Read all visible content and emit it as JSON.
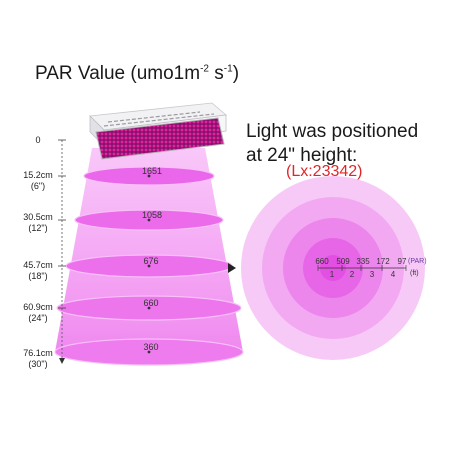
{
  "title": {
    "base": "PAR Value (umo1m",
    "sup1": "-2",
    "mid": " s",
    "sup2": "-1",
    "end": ")"
  },
  "headline": "Light was positioned at 24\" height:",
  "lux": "(Lx:23342)",
  "heights": [
    {
      "line1": "0",
      "line2": ""
    },
    {
      "line1": "15.2cm",
      "line2": "(6\")"
    },
    {
      "line1": "30.5cm",
      "line2": "(12\")"
    },
    {
      "line1": "45.7cm",
      "line2": "(18\")"
    },
    {
      "line1": "60.9cm",
      "line2": "(24\")"
    },
    {
      "line1": "76.1cm",
      "line2": "(30\")"
    }
  ],
  "par_values": [
    "1651",
    "1058",
    "676",
    "660",
    "360"
  ],
  "ring_values": [
    "660",
    "509",
    "335",
    "172",
    "97"
  ],
  "ring_par_unit": "(PAR)",
  "ring_feet": [
    "1",
    "2",
    "3",
    "4"
  ],
  "ring_feet_unit": "(ft)",
  "colors": {
    "beam": "#f08cf0",
    "ring_outer": "#f7c9f7",
    "ring_inner": "#e34fe3",
    "led": "#c2189c"
  }
}
